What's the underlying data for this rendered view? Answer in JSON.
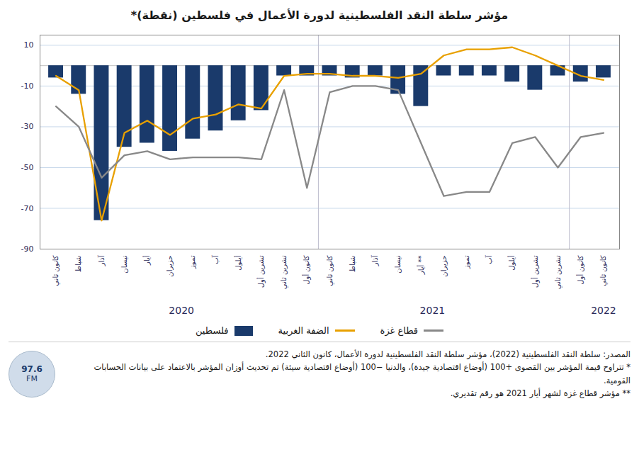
{
  "chart_data": {
    "type": "bar",
    "title": "مؤشر سلطة النقد الفلسطينية لدورة الأعمال في فلسطين (نقطة)*",
    "categories": [
      "كانون ثاني",
      "شباط",
      "آذار",
      "نيسان",
      "أيار",
      "حزيران",
      "تموز",
      "آب",
      "أيلول",
      "تشرين أول",
      "تشرين ثاني",
      "كانون أول",
      "كانون ثاني",
      "شباط",
      "آذار",
      "نيسان",
      "أيار **",
      "حزيران",
      "تموز",
      "آب",
      "أيلول",
      "تشرين أول",
      "تشرين ثاني",
      "كانون أول",
      "كانون ثاني"
    ],
    "series": [
      {
        "name": "فلسطين",
        "type": "bar",
        "color": "#1a3a6b",
        "values": [
          -6,
          -14,
          -76,
          -40,
          -38,
          -42,
          -36,
          -32,
          -27,
          -22,
          -5,
          -5,
          -5,
          -6,
          -5,
          -14,
          -20,
          -5,
          -5,
          -5,
          -8,
          -12,
          -5,
          -8,
          -6
        ]
      },
      {
        "name": "الضفة الغربية",
        "type": "line",
        "color": "#e8a000",
        "values": [
          -5,
          -12,
          -76,
          -33,
          -27,
          -34,
          -26,
          -24,
          -19,
          -21,
          -5,
          -4,
          -4,
          -5,
          -5,
          -6,
          -4,
          5,
          8,
          8,
          9,
          5,
          0,
          -5,
          -7
        ]
      },
      {
        "name": "قطاع غزة",
        "type": "line",
        "color": "#888888",
        "values": [
          -20,
          -30,
          -55,
          -44,
          -42,
          -46,
          -45,
          -45,
          -45,
          -46,
          -12,
          -60,
          -13,
          -10,
          -10,
          -12,
          -38,
          -64,
          -62,
          -62,
          -38,
          -35,
          -50,
          -35,
          -33
        ]
      }
    ],
    "ylim": [
      -90,
      15
    ],
    "yticks": [
      10,
      -10,
      -30,
      -50,
      -70,
      -90
    ],
    "grid": true,
    "legend": "bottom",
    "annotations": [
      {
        "text": "2020",
        "x": 5.5
      },
      {
        "text": "2021",
        "x": 16.5
      },
      {
        "text": "2022",
        "x": 24.0
      }
    ],
    "separators": [
      11.5,
      22.5
    ],
    "footnotes": [
      "المصدر: سلطة النقد الفلسطينية (2022)، مؤشر سلطة النقد الفلسطينية لدورة الأعمال، كانون الثاني 2022.",
      "* تتراوح قيمة المؤشر بين القصوى +100 (أوضاع اقتصادية جيدة)، والدنيا −100 (أوضاع اقتصادية سيئة) تم تحديث أوزان المؤشر بالاعتماد على بيانات الحسابات القومية.",
      "** مؤشر قطاع غزة لشهر أيار  2021 هو رقم تقديري."
    ],
    "logo_text": [
      "97.6",
      "FM"
    ]
  }
}
